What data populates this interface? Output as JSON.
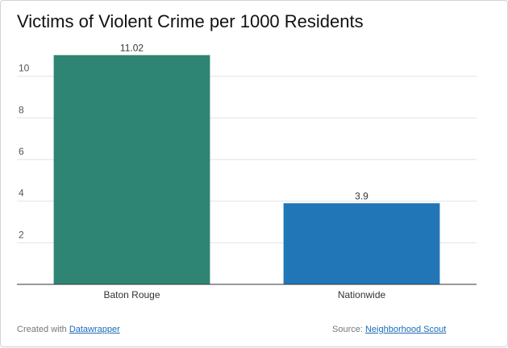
{
  "chart_data": {
    "type": "bar",
    "title": "Victims of Violent Crime per 1000 Residents",
    "categories": [
      "Baton Rouge",
      "Nationwide"
    ],
    "values": [
      11.02,
      3.9
    ],
    "value_labels": [
      "11.02",
      "3.9"
    ],
    "colors": [
      "#2e8573",
      "#2176b8"
    ],
    "ylim": [
      0,
      11.5
    ],
    "yticks": [
      2,
      4,
      6,
      8,
      10
    ],
    "grid": true,
    "xlabel": "",
    "ylabel": ""
  },
  "footer": {
    "created_prefix": "Created with ",
    "created_link": "Datawrapper",
    "source_prefix": "Source: ",
    "source_link": "Neighborhood Scout"
  }
}
